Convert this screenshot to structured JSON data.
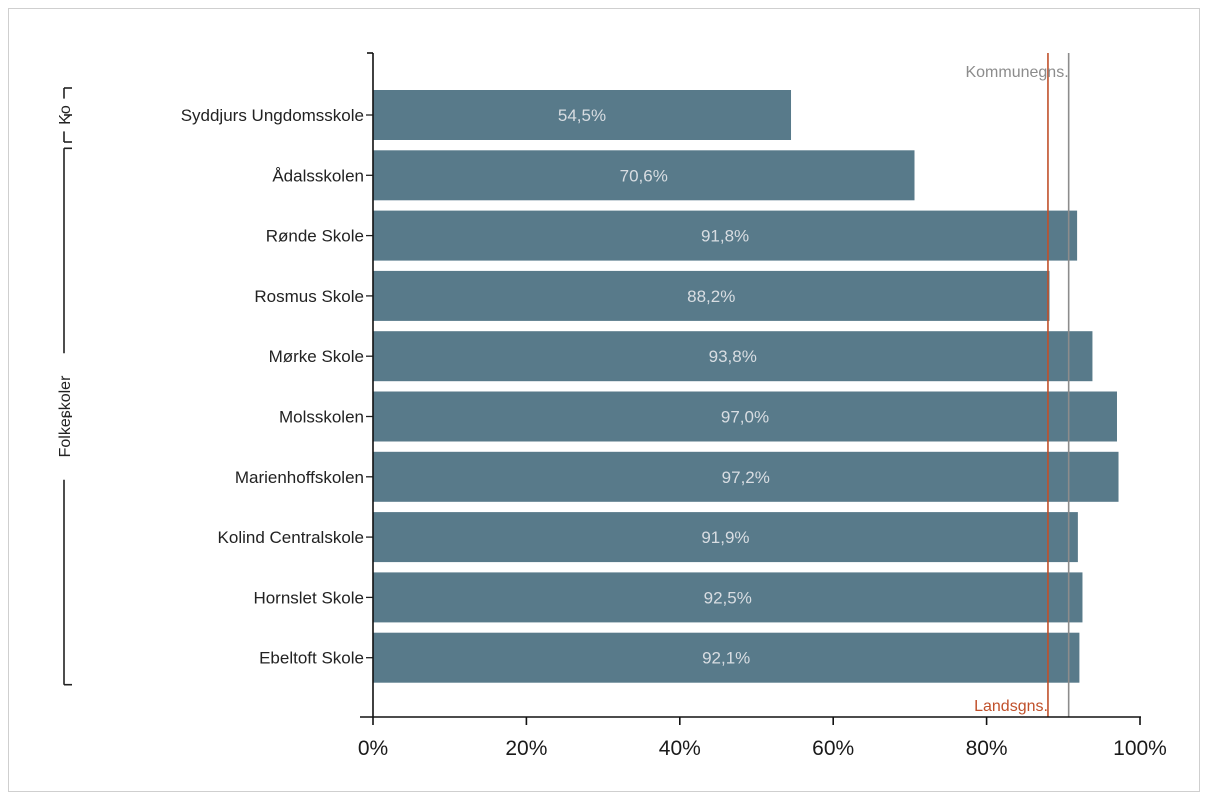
{
  "chart_data": {
    "type": "bar",
    "orientation": "horizontal",
    "categories": [
      "Syddjurs Ungdomsskole",
      "Ådalsskolen",
      "Rønde Skole",
      "Rosmus Skole",
      "Mørke Skole",
      "Molsskolen",
      "Marienhoffskolen",
      "Kolind Centralskole",
      "Hornslet Skole",
      "Ebeltoft Skole"
    ],
    "values": [
      54.5,
      70.6,
      91.8,
      88.2,
      93.8,
      97.0,
      97.2,
      91.9,
      92.5,
      92.1
    ],
    "value_labels": [
      "54,5%",
      "70,6%",
      "91,8%",
      "88,2%",
      "93,8%",
      "97,0%",
      "97,2%",
      "91,9%",
      "92,5%",
      "92,1%"
    ],
    "groups": [
      {
        "label": "Ko",
        "from": 0,
        "to": 0
      },
      {
        "label": "Folkeskoler",
        "from": 1,
        "to": 9
      }
    ],
    "xlim": [
      0,
      100
    ],
    "x_ticks": [
      0,
      20,
      40,
      60,
      80,
      100
    ],
    "x_tick_labels": [
      "0%",
      "20%",
      "40%",
      "60%",
      "80%",
      "100%"
    ],
    "reference_lines": [
      {
        "label": "Landsgns.",
        "value": 88.0,
        "color": "#c0502a",
        "label_position": "bottom"
      },
      {
        "label": "Kommunegns.",
        "value": 90.7,
        "color": "#8c8c8c",
        "label_position": "top"
      }
    ],
    "bar_color": "#587a8a",
    "grid": false,
    "legend": "none"
  }
}
